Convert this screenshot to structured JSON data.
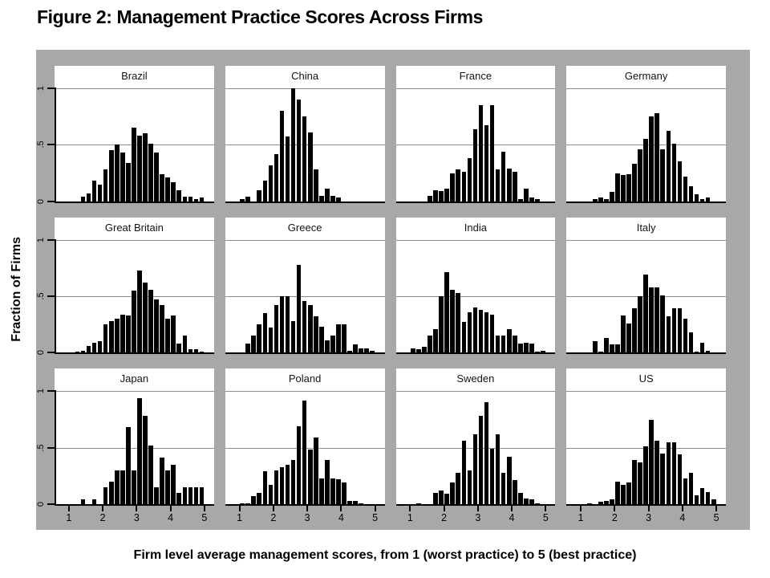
{
  "figure": {
    "title": "Figure 2: Management Practice Scores Across Firms",
    "y_axis_title": "Fraction of Firms",
    "caption": "Firm level average management scores, from 1 (worst practice) to 5 (best practice)"
  },
  "axes": {
    "y_ticks": [
      "1",
      ".5",
      "0"
    ],
    "y_tick_positions_pct": [
      0,
      50,
      100
    ],
    "x_ticks": [
      "1",
      "2",
      "3",
      "4",
      "5"
    ]
  },
  "colors": {
    "frame_background": "#a8a8a8",
    "panel_background": "#ffffff",
    "bar": "#000000",
    "gridline": "#8c8c8c",
    "axis": "#000000",
    "text": "#000000"
  },
  "chart_data": {
    "type": "bar",
    "subtype": "histogram-small-multiples",
    "title": "Figure 2: Management Practice Scores Across Firms",
    "xlabel": "Firm level average management scores, from 1 (worst practice) to 5 (best practice)",
    "ylabel": "Fraction of Firms",
    "x_range": [
      1,
      5
    ],
    "y_range": [
      0,
      1
    ],
    "y_gridlines": [
      0.5,
      1
    ],
    "bins": 24,
    "bin_width": 0.1667,
    "grid_layout": {
      "rows": 3,
      "cols": 4
    },
    "panels": [
      {
        "country": "Brazil",
        "values": [
          0,
          0,
          0.04,
          0.07,
          0.18,
          0.15,
          0.28,
          0.45,
          0.5,
          0.43,
          0.34,
          0.65,
          0.58,
          0.6,
          0.51,
          0.43,
          0.24,
          0.21,
          0.17,
          0.1,
          0.04,
          0.04,
          0.02,
          0.03
        ]
      },
      {
        "country": "China",
        "values": [
          0.02,
          0.04,
          0,
          0.1,
          0.18,
          0.32,
          0.42,
          0.8,
          0.57,
          1.0,
          0.9,
          0.75,
          0.61,
          0.28,
          0.05,
          0.11,
          0.05,
          0.03,
          0,
          0,
          0,
          0,
          0,
          0
        ]
      },
      {
        "country": "France",
        "values": [
          0,
          0,
          0,
          0.05,
          0.1,
          0.09,
          0.11,
          0.25,
          0.28,
          0.26,
          0.38,
          0.64,
          0.85,
          0.67,
          0.85,
          0.28,
          0.44,
          0.29,
          0.26,
          0.02,
          0.11,
          0.03,
          0.02,
          0
        ]
      },
      {
        "country": "Germany",
        "values": [
          0,
          0,
          0.02,
          0.03,
          0.02,
          0.08,
          0.25,
          0.23,
          0.24,
          0.33,
          0.46,
          0.55,
          0.75,
          0.78,
          0.46,
          0.62,
          0.51,
          0.35,
          0.22,
          0.13,
          0.06,
          0.02,
          0.03,
          0
        ]
      },
      {
        "country": "Great Britain",
        "values": [
          0,
          0.01,
          0.02,
          0.06,
          0.09,
          0.1,
          0.25,
          0.28,
          0.3,
          0.34,
          0.33,
          0.55,
          0.73,
          0.62,
          0.56,
          0.47,
          0.42,
          0.3,
          0.33,
          0.08,
          0.15,
          0.03,
          0.03,
          0.01
        ]
      },
      {
        "country": "Greece",
        "values": [
          0,
          0.08,
          0.15,
          0.25,
          0.35,
          0.22,
          0.42,
          0.5,
          0.5,
          0.28,
          0.78,
          0.46,
          0.42,
          0.32,
          0.23,
          0.11,
          0.15,
          0.25,
          0.25,
          0.02,
          0.07,
          0.04,
          0.04,
          0.02
        ]
      },
      {
        "country": "India",
        "values": [
          0.04,
          0.03,
          0.05,
          0.15,
          0.21,
          0.5,
          0.71,
          0.56,
          0.53,
          0.27,
          0.36,
          0.4,
          0.38,
          0.36,
          0.34,
          0.15,
          0.15,
          0.21,
          0.15,
          0.08,
          0.09,
          0.08,
          0.01,
          0.02
        ]
      },
      {
        "country": "Italy",
        "values": [
          0,
          0,
          0.1,
          0.01,
          0.13,
          0.07,
          0.07,
          0.33,
          0.26,
          0.39,
          0.5,
          0.69,
          0.58,
          0.58,
          0.51,
          0.32,
          0.39,
          0.39,
          0.3,
          0.18,
          0.01,
          0.09,
          0.02,
          0
        ]
      },
      {
        "country": "Japan",
        "values": [
          0,
          0,
          0.04,
          0,
          0.04,
          0,
          0.15,
          0.2,
          0.3,
          0.3,
          0.68,
          0.3,
          0.94,
          0.78,
          0.52,
          0.15,
          0.41,
          0.3,
          0.35,
          0.1,
          0.15,
          0.15,
          0.15,
          0.15
        ]
      },
      {
        "country": "Poland",
        "values": [
          0.01,
          0.01,
          0.07,
          0.1,
          0.29,
          0.17,
          0.3,
          0.33,
          0.35,
          0.39,
          0.69,
          0.92,
          0.48,
          0.59,
          0.23,
          0.39,
          0.23,
          0.22,
          0.19,
          0.03,
          0.03,
          0.01,
          0,
          0
        ]
      },
      {
        "country": "Sweden",
        "values": [
          0,
          0.01,
          0,
          0,
          0.1,
          0.12,
          0.09,
          0.19,
          0.28,
          0.56,
          0.3,
          0.62,
          0.78,
          0.9,
          0.49,
          0.62,
          0.28,
          0.42,
          0.21,
          0.1,
          0.05,
          0.04,
          0.01,
          0
        ]
      },
      {
        "country": "US",
        "values": [
          0,
          0.01,
          0,
          0.02,
          0.03,
          0.04,
          0.2,
          0.17,
          0.19,
          0.39,
          0.37,
          0.51,
          0.75,
          0.56,
          0.45,
          0.55,
          0.55,
          0.44,
          0.23,
          0.28,
          0.08,
          0.14,
          0.11,
          0.04
        ]
      }
    ]
  }
}
